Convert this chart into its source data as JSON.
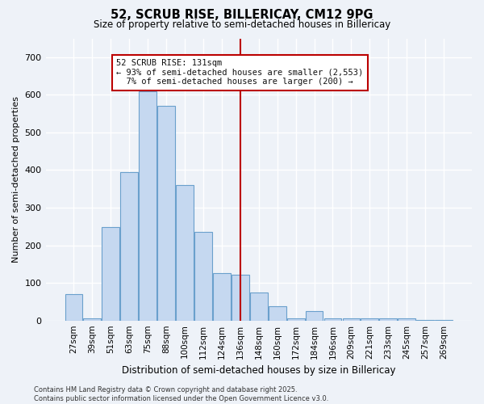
{
  "title1": "52, SCRUB RISE, BILLERICAY, CM12 9PG",
  "title2": "Size of property relative to semi-detached houses in Billericay",
  "xlabel": "Distribution of semi-detached houses by size in Billericay",
  "ylabel": "Number of semi-detached properties",
  "categories": [
    "27sqm",
    "39sqm",
    "51sqm",
    "63sqm",
    "75sqm",
    "88sqm",
    "100sqm",
    "112sqm",
    "124sqm",
    "136sqm",
    "148sqm",
    "160sqm",
    "172sqm",
    "184sqm",
    "196sqm",
    "209sqm",
    "221sqm",
    "233sqm",
    "245sqm",
    "257sqm",
    "269sqm"
  ],
  "values": [
    70,
    5,
    248,
    395,
    610,
    570,
    360,
    235,
    125,
    122,
    75,
    37,
    5,
    25,
    5,
    5,
    5,
    5,
    5,
    2,
    2
  ],
  "bar_color": "#c5d8f0",
  "bar_edge_color": "#6aa0cc",
  "vline_color": "#bb0000",
  "vline_pos": 9.0,
  "annotation_text": "52 SCRUB RISE: 131sqm\n← 93% of semi-detached houses are smaller (2,553)\n  7% of semi-detached houses are larger (200) →",
  "annotation_box_facecolor": "#ffffff",
  "annotation_box_edgecolor": "#bb0000",
  "background_color": "#eef2f8",
  "grid_color": "#ffffff",
  "footer_text": "Contains HM Land Registry data © Crown copyright and database right 2025.\nContains public sector information licensed under the Open Government Licence v3.0.",
  "ylim": [
    0,
    750
  ],
  "yticks": [
    0,
    100,
    200,
    300,
    400,
    500,
    600,
    700
  ]
}
